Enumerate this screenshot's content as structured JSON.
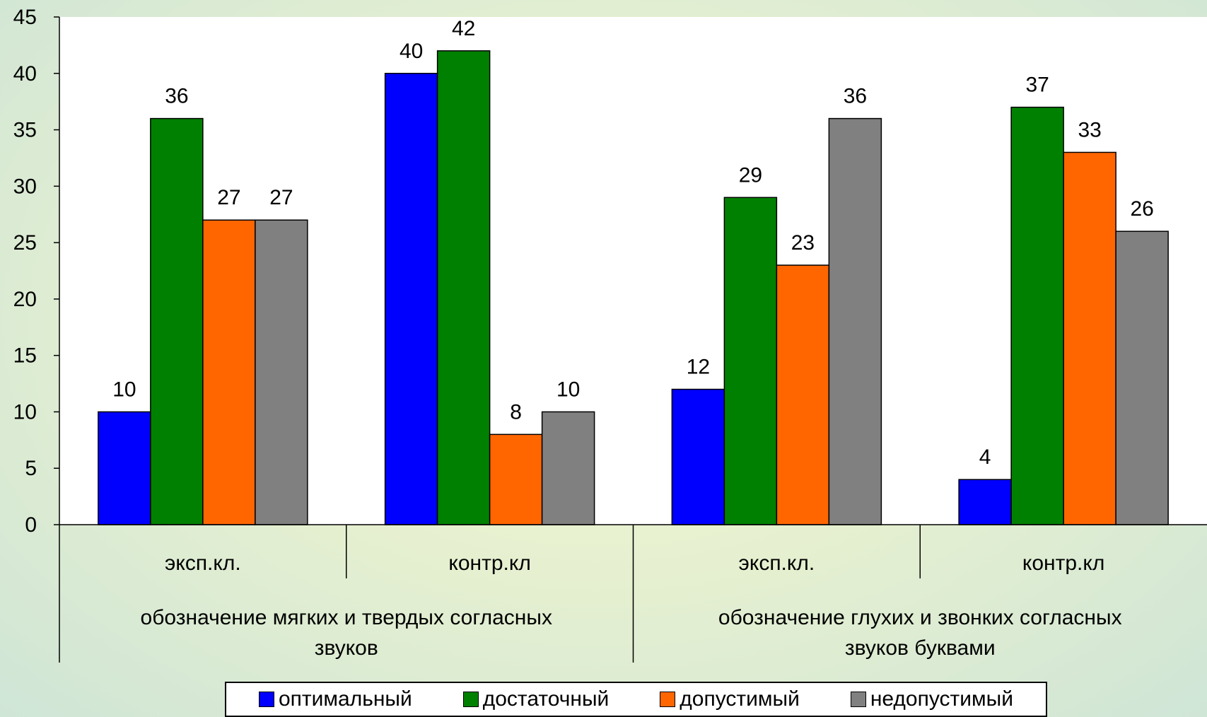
{
  "chart_data": {
    "type": "bar",
    "categories": [
      "эксп.кл.",
      "контр.кл",
      "эксп.кл.",
      "контр.кл"
    ],
    "groups": [
      {
        "label_lines": [
          "обозначение мягких и твердых согласных",
          "звуков"
        ],
        "categories": [
          0,
          1
        ]
      },
      {
        "label_lines": [
          "обозначение глухих и звонких согласных",
          "звуков буквами"
        ],
        "categories": [
          2,
          3
        ]
      }
    ],
    "series": [
      {
        "name": "оптимальный",
        "color": "#0000ff",
        "values": [
          10,
          40,
          12,
          4
        ]
      },
      {
        "name": "достаточный",
        "color": "#008000",
        "values": [
          36,
          42,
          29,
          37
        ]
      },
      {
        "name": "допустимый",
        "color": "#ff6600",
        "values": [
          27,
          8,
          23,
          33
        ]
      },
      {
        "name": "недопустимый",
        "color": "#808080",
        "values": [
          27,
          10,
          36,
          26
        ]
      }
    ],
    "ylim": [
      0,
      45
    ],
    "yticks": [
      0,
      5,
      10,
      15,
      20,
      25,
      30,
      35,
      40,
      45
    ],
    "grid": false,
    "legend_position": "bottom"
  }
}
